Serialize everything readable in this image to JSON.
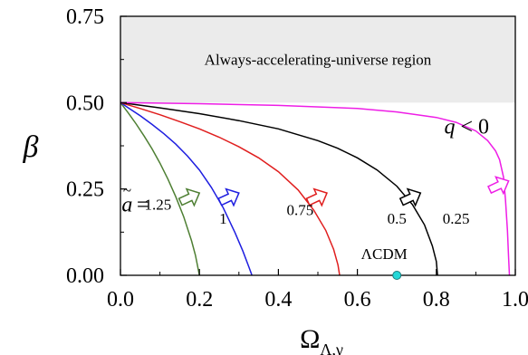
{
  "chart_data": {
    "type": "line",
    "xlabel": {
      "main": "Ω",
      "sub": "Λ,γ"
    },
    "ylabel": "β",
    "xlim": [
      0.0,
      1.0
    ],
    "ylim": [
      0.0,
      0.75
    ],
    "x_ticks": [
      {
        "value": 0.0,
        "label": "0.0"
      },
      {
        "value": 0.2,
        "label": "0.2"
      },
      {
        "value": 0.4,
        "label": "0.4"
      },
      {
        "value": 0.6,
        "label": "0.6"
      },
      {
        "value": 0.8,
        "label": "0.8"
      },
      {
        "value": 1.0,
        "label": "1.0"
      }
    ],
    "y_ticks": [
      {
        "value": 0.0,
        "label": "0.00"
      },
      {
        "value": 0.25,
        "label": "0.25"
      },
      {
        "value": 0.5,
        "label": "0.50"
      },
      {
        "value": 0.75,
        "label": "0.75"
      }
    ],
    "grid": false,
    "shaded_region": {
      "label": "Always-accelerating-universe region",
      "x": [
        0.0,
        1.0
      ],
      "y": [
        0.5,
        0.75
      ],
      "color": "#ebebeb"
    },
    "series": [
      {
        "name": "1.25",
        "color": "#4e7f33",
        "points": [
          [
            0.0,
            0.5
          ],
          [
            0.02,
            0.47
          ],
          [
            0.04,
            0.438
          ],
          [
            0.06,
            0.403
          ],
          [
            0.08,
            0.366
          ],
          [
            0.1,
            0.325
          ],
          [
            0.12,
            0.279
          ],
          [
            0.14,
            0.228
          ],
          [
            0.16,
            0.17
          ],
          [
            0.18,
            0.1
          ],
          [
            0.19,
            0.058
          ],
          [
            0.2,
            0.0
          ]
        ]
      },
      {
        "name": "1",
        "color": "#1e1ee0",
        "points": [
          [
            0.0,
            0.5
          ],
          [
            0.02,
            0.485
          ],
          [
            0.05,
            0.462
          ],
          [
            0.08,
            0.437
          ],
          [
            0.11,
            0.41
          ],
          [
            0.14,
            0.38
          ],
          [
            0.17,
            0.345
          ],
          [
            0.2,
            0.305
          ],
          [
            0.23,
            0.255
          ],
          [
            0.26,
            0.196
          ],
          [
            0.29,
            0.124
          ],
          [
            0.31,
            0.07
          ],
          [
            0.325,
            0.025
          ],
          [
            0.333,
            0.0
          ]
        ]
      },
      {
        "name": "0.75",
        "color": "#e01e1e",
        "points": [
          [
            0.0,
            0.5
          ],
          [
            0.05,
            0.483
          ],
          [
            0.1,
            0.465
          ],
          [
            0.15,
            0.445
          ],
          [
            0.2,
            0.424
          ],
          [
            0.25,
            0.4
          ],
          [
            0.3,
            0.372
          ],
          [
            0.35,
            0.34
          ],
          [
            0.4,
            0.3
          ],
          [
            0.45,
            0.247
          ],
          [
            0.49,
            0.188
          ],
          [
            0.52,
            0.13
          ],
          [
            0.54,
            0.075
          ],
          [
            0.551,
            0.03
          ],
          [
            0.555,
            0.0
          ]
        ]
      },
      {
        "name": "0.5",
        "color": "#000000",
        "points": [
          [
            0.0,
            0.5
          ],
          [
            0.1,
            0.485
          ],
          [
            0.2,
            0.468
          ],
          [
            0.3,
            0.448
          ],
          [
            0.4,
            0.424
          ],
          [
            0.5,
            0.39
          ],
          [
            0.55,
            0.368
          ],
          [
            0.6,
            0.34
          ],
          [
            0.65,
            0.305
          ],
          [
            0.7,
            0.258
          ],
          [
            0.74,
            0.204
          ],
          [
            0.77,
            0.146
          ],
          [
            0.79,
            0.085
          ],
          [
            0.8,
            0.04
          ],
          [
            0.803,
            0.0
          ]
        ]
      },
      {
        "name": "0.25",
        "color": "#ee1ee6",
        "points": [
          [
            0.0,
            0.5
          ],
          [
            0.2,
            0.497
          ],
          [
            0.4,
            0.492
          ],
          [
            0.6,
            0.483
          ],
          [
            0.7,
            0.473
          ],
          [
            0.8,
            0.457
          ],
          [
            0.85,
            0.443
          ],
          [
            0.9,
            0.418
          ],
          [
            0.93,
            0.39
          ],
          [
            0.95,
            0.36
          ],
          [
            0.96,
            0.335
          ],
          [
            0.97,
            0.285
          ],
          [
            0.975,
            0.22
          ],
          [
            0.98,
            0.13
          ],
          [
            0.983,
            0.05
          ],
          [
            0.985,
            0.0
          ]
        ]
      }
    ],
    "curve_labels": [
      {
        "text": "1.25",
        "x": 0.095,
        "y": 0.19
      },
      {
        "text": "1",
        "x": 0.26,
        "y": 0.15
      },
      {
        "text": "0.75",
        "x": 0.455,
        "y": 0.175
      },
      {
        "text": "0.5",
        "x": 0.7,
        "y": 0.15
      },
      {
        "text": "0.25",
        "x": 0.85,
        "y": 0.15
      }
    ],
    "a_label": {
      "symbol": "a",
      "equals": "="
    },
    "arrows": [
      {
        "series": "1.25",
        "x": 0.175,
        "y": 0.225
      },
      {
        "series": "1",
        "x": 0.275,
        "y": 0.225
      },
      {
        "series": "0.75",
        "x": 0.498,
        "y": 0.225
      },
      {
        "series": "0.5",
        "x": 0.735,
        "y": 0.225
      },
      {
        "series": "0.25",
        "x": 0.958,
        "y": 0.26
      }
    ],
    "marker": {
      "label": "ΛCDM",
      "x": 0.7,
      "y": 0.0,
      "color": "#25d8d8"
    },
    "q_label": {
      "var": "q",
      "relation": "< 0",
      "x": 0.82,
      "y": 0.41
    }
  }
}
